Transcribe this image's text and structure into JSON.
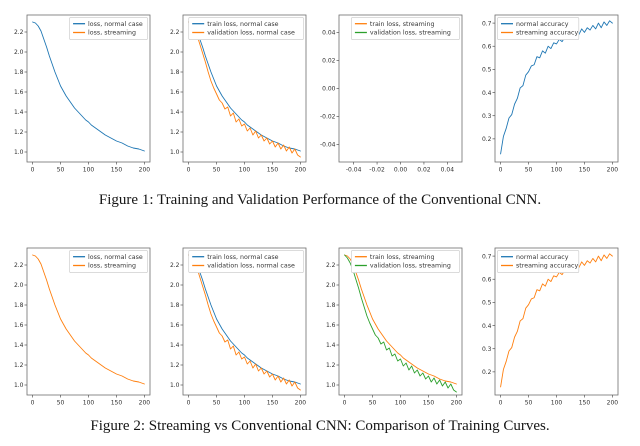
{
  "figure1": {
    "caption": "Figure 1: Training and Validation Performance of the Conventional CNN."
  },
  "figure2": {
    "caption": "Figure 2: Streaming vs Conventional CNN: Comparison of Training Curves."
  },
  "colors": {
    "blue": "#1f77b4",
    "orange": "#ff7f0e",
    "green": "#2ca02c"
  },
  "series_lib": {
    "loss_smooth": [
      2.3,
      2.29,
      2.26,
      2.21,
      2.13,
      2.05,
      1.96,
      1.88,
      1.8,
      1.73,
      1.66,
      1.61,
      1.56,
      1.52,
      1.48,
      1.44,
      1.41,
      1.38,
      1.35,
      1.32,
      1.3,
      1.27,
      1.25,
      1.23,
      1.21,
      1.19,
      1.17,
      1.155,
      1.14,
      1.125,
      1.11,
      1.1,
      1.09,
      1.075,
      1.06,
      1.05,
      1.04,
      1.035,
      1.03,
      1.02,
      1.01
    ],
    "val_loss": [
      2.3,
      2.28,
      2.24,
      2.17,
      2.08,
      1.99,
      1.9,
      1.8,
      1.71,
      1.64,
      1.58,
      1.52,
      1.49,
      1.43,
      1.45,
      1.36,
      1.39,
      1.3,
      1.33,
      1.26,
      1.28,
      1.21,
      1.24,
      1.17,
      1.21,
      1.14,
      1.17,
      1.11,
      1.14,
      1.08,
      1.11,
      1.05,
      1.09,
      1.03,
      1.07,
      1.01,
      1.05,
      0.99,
      1.03,
      0.97,
      0.95
    ],
    "val_loss_green": [
      2.3,
      2.27,
      2.22,
      2.15,
      2.06,
      1.97,
      1.87,
      1.78,
      1.69,
      1.62,
      1.56,
      1.5,
      1.47,
      1.41,
      1.43,
      1.35,
      1.37,
      1.29,
      1.31,
      1.24,
      1.26,
      1.19,
      1.22,
      1.15,
      1.19,
      1.12,
      1.15,
      1.09,
      1.12,
      1.06,
      1.09,
      1.03,
      1.07,
      1.01,
      1.05,
      0.99,
      1.03,
      0.97,
      1.01,
      0.95,
      0.93
    ],
    "acc_noisy": [
      0.135,
      0.21,
      0.245,
      0.29,
      0.305,
      0.35,
      0.375,
      0.42,
      0.43,
      0.475,
      0.49,
      0.515,
      0.52,
      0.555,
      0.55,
      0.58,
      0.57,
      0.6,
      0.59,
      0.615,
      0.61,
      0.63,
      0.62,
      0.64,
      0.63,
      0.655,
      0.64,
      0.665,
      0.65,
      0.675,
      0.66,
      0.68,
      0.67,
      0.69,
      0.675,
      0.7,
      0.68,
      0.705,
      0.69,
      0.71,
      0.7
    ]
  },
  "chart_data": [
    {
      "id": "f1p1",
      "type": "line",
      "xlim": [
        -10,
        210
      ],
      "ylim": [
        0.9,
        2.37
      ],
      "xticks": [
        0,
        50,
        100,
        150,
        200
      ],
      "yticks": [
        1.0,
        1.2,
        1.4,
        1.6,
        1.8,
        2.0,
        2.2
      ],
      "xdec": 0,
      "ydec": 1,
      "x_start": 0,
      "x_step": 5,
      "legend_pos": "ur",
      "legend": [
        {
          "label": "loss, normal case",
          "color": "#1f77b4"
        },
        {
          "label": "loss, streaming",
          "color": "#ff7f0e"
        }
      ],
      "series": [
        {
          "name": "loss, normal case",
          "color": "#1f77b4",
          "data": "loss_smooth"
        }
      ]
    },
    {
      "id": "f1p2",
      "type": "line",
      "xlim": [
        -10,
        210
      ],
      "ylim": [
        0.9,
        2.37
      ],
      "xticks": [
        0,
        50,
        100,
        150,
        200
      ],
      "yticks": [
        1.0,
        1.2,
        1.4,
        1.6,
        1.8,
        2.0,
        2.2
      ],
      "xdec": 0,
      "ydec": 1,
      "x_start": 0,
      "x_step": 5,
      "legend_pos": "ur",
      "legend": [
        {
          "label": "train loss, normal case",
          "color": "#1f77b4"
        },
        {
          "label": "validation loss, normal case",
          "color": "#ff7f0e"
        }
      ],
      "series": [
        {
          "name": "train loss, normal case",
          "color": "#1f77b4",
          "data": "loss_smooth"
        },
        {
          "name": "validation loss, normal case",
          "color": "#ff7f0e",
          "data": "val_loss"
        }
      ]
    },
    {
      "id": "f1p3",
      "type": "line",
      "xlim": [
        -0.0525,
        0.0525
      ],
      "ylim": [
        -0.0525,
        0.0525
      ],
      "xticks": [
        -0.04,
        -0.02,
        0.0,
        0.02,
        0.04
      ],
      "yticks": [
        -0.04,
        -0.02,
        0.0,
        0.02,
        0.04
      ],
      "xdec": 2,
      "ydec": 2,
      "x_start": 0,
      "x_step": 5,
      "legend_pos": "ur",
      "legend": [
        {
          "label": "train loss, streaming",
          "color": "#ff7f0e"
        },
        {
          "label": "validation loss, streaming",
          "color": "#2ca02c"
        }
      ],
      "series": []
    },
    {
      "id": "f1p4",
      "type": "line",
      "xlim": [
        -10,
        210
      ],
      "ylim": [
        0.1,
        0.735
      ],
      "xticks": [
        0,
        50,
        100,
        150,
        200
      ],
      "yticks": [
        0.2,
        0.3,
        0.4,
        0.5,
        0.6,
        0.7
      ],
      "xdec": 0,
      "ydec": 1,
      "x_start": 0,
      "x_step": 5,
      "legend_pos": "ul",
      "legend": [
        {
          "label": "normal accuracy",
          "color": "#1f77b4"
        },
        {
          "label": "streaming accuracy",
          "color": "#ff7f0e"
        }
      ],
      "series": [
        {
          "name": "normal accuracy",
          "color": "#1f77b4",
          "data": "acc_noisy"
        }
      ]
    },
    {
      "id": "f2p1",
      "type": "line",
      "xlim": [
        -10,
        210
      ],
      "ylim": [
        0.9,
        2.37
      ],
      "xticks": [
        0,
        50,
        100,
        150,
        200
      ],
      "yticks": [
        1.0,
        1.2,
        1.4,
        1.6,
        1.8,
        2.0,
        2.2
      ],
      "xdec": 0,
      "ydec": 1,
      "x_start": 0,
      "x_step": 5,
      "legend_pos": "ur",
      "legend": [
        {
          "label": "loss, normal case",
          "color": "#1f77b4"
        },
        {
          "label": "loss, streaming",
          "color": "#ff7f0e"
        }
      ],
      "series": [
        {
          "name": "loss, streaming",
          "color": "#ff7f0e",
          "data": "loss_smooth"
        }
      ]
    },
    {
      "id": "f2p2",
      "type": "line",
      "xlim": [
        -10,
        210
      ],
      "ylim": [
        0.9,
        2.37
      ],
      "xticks": [
        0,
        50,
        100,
        150,
        200
      ],
      "yticks": [
        1.0,
        1.2,
        1.4,
        1.6,
        1.8,
        2.0,
        2.2
      ],
      "xdec": 0,
      "ydec": 1,
      "x_start": 0,
      "x_step": 5,
      "legend_pos": "ur",
      "legend": [
        {
          "label": "train loss, normal case",
          "color": "#1f77b4"
        },
        {
          "label": "validation loss, normal case",
          "color": "#ff7f0e"
        }
      ],
      "series": [
        {
          "name": "train loss, normal case",
          "color": "#1f77b4",
          "data": "loss_smooth"
        },
        {
          "name": "validation loss, normal case",
          "color": "#ff7f0e",
          "data": "val_loss"
        }
      ]
    },
    {
      "id": "f2p3",
      "type": "line",
      "xlim": [
        -10,
        210
      ],
      "ylim": [
        0.9,
        2.37
      ],
      "xticks": [
        0,
        50,
        100,
        150,
        200
      ],
      "yticks": [
        1.0,
        1.2,
        1.4,
        1.6,
        1.8,
        2.0,
        2.2
      ],
      "xdec": 0,
      "ydec": 1,
      "x_start": 0,
      "x_step": 5,
      "legend_pos": "ur",
      "legend": [
        {
          "label": "train loss, streaming",
          "color": "#ff7f0e"
        },
        {
          "label": "validation loss, streaming",
          "color": "#2ca02c"
        }
      ],
      "series": [
        {
          "name": "train loss, streaming",
          "color": "#ff7f0e",
          "data": "loss_smooth"
        },
        {
          "name": "validation loss, streaming",
          "color": "#2ca02c",
          "data": "val_loss_green"
        }
      ]
    },
    {
      "id": "f2p4",
      "type": "line",
      "xlim": [
        -10,
        210
      ],
      "ylim": [
        0.1,
        0.735
      ],
      "xticks": [
        0,
        50,
        100,
        150,
        200
      ],
      "yticks": [
        0.2,
        0.3,
        0.4,
        0.5,
        0.6,
        0.7
      ],
      "xdec": 0,
      "ydec": 1,
      "x_start": 0,
      "x_step": 5,
      "legend_pos": "ul",
      "legend": [
        {
          "label": "normal accuracy",
          "color": "#1f77b4"
        },
        {
          "label": "streaming accuracy",
          "color": "#ff7f0e"
        }
      ],
      "series": [
        {
          "name": "streaming accuracy",
          "color": "#ff7f0e",
          "data": "acc_noisy"
        }
      ]
    }
  ]
}
